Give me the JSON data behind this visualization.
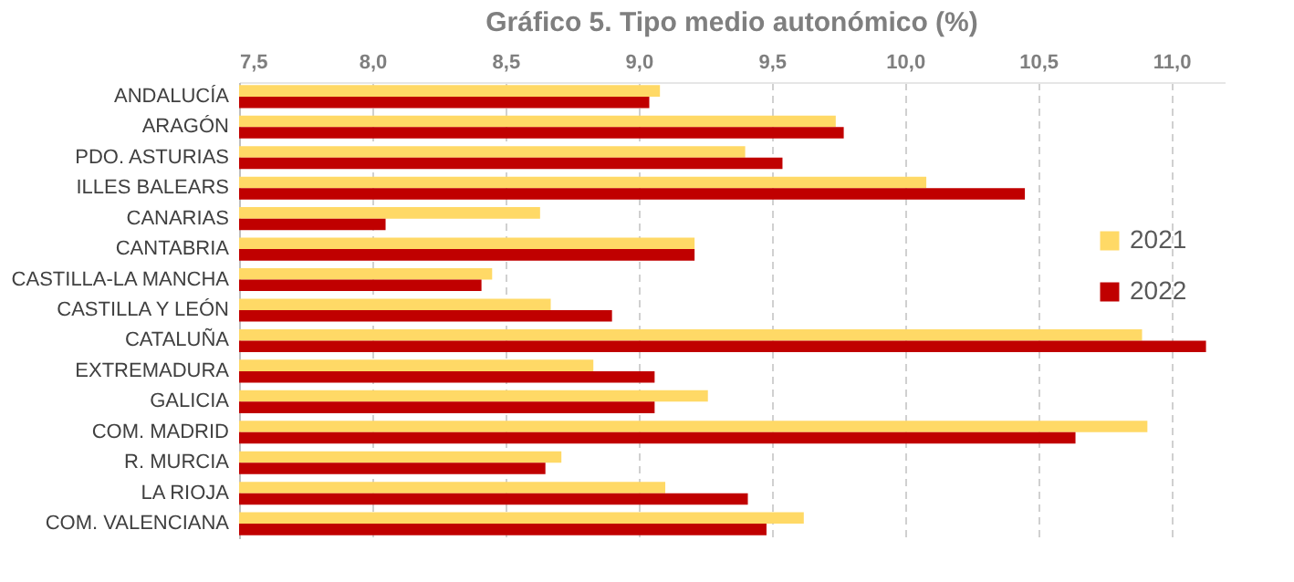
{
  "chart_data": {
    "type": "bar",
    "orientation": "horizontal",
    "title": "Gráfico 5. Tipo medio autonómico (%)",
    "categories": [
      "ANDALUCÍA",
      "ARAGÓN",
      "PDO. ASTURIAS",
      "ILLES BALEARS",
      "CANARIAS",
      "CANTABRIA",
      "CASTILLA-LA MANCHA",
      "CASTILLA Y LEÓN",
      "CATALUÑA",
      "EXTREMADURA",
      "GALICIA",
      "COM. MADRID",
      "R. MURCIA",
      "LA RIOJA",
      "COM. VALENCIANA"
    ],
    "series": [
      {
        "name": "2021",
        "color": "#ffd966",
        "values": [
          9.08,
          9.74,
          9.4,
          10.08,
          8.63,
          9.21,
          8.45,
          8.67,
          10.89,
          8.83,
          9.26,
          10.91,
          8.71,
          9.1,
          9.62
        ]
      },
      {
        "name": "2022",
        "color": "#c00000",
        "values": [
          9.04,
          9.77,
          9.54,
          10.45,
          8.05,
          9.21,
          8.41,
          8.9,
          11.13,
          9.06,
          9.06,
          10.64,
          8.65,
          9.41,
          9.48
        ]
      }
    ],
    "xlim": [
      7.5,
      11.2
    ],
    "xticks": [
      {
        "value": 7.5,
        "label": "7,5"
      },
      {
        "value": 8,
        "label": "8,0"
      },
      {
        "value": 8.5,
        "label": "8,5"
      },
      {
        "value": 9,
        "label": "9,0"
      },
      {
        "value": 9.5,
        "label": "9,5"
      },
      {
        "value": 10,
        "label": "10,0"
      },
      {
        "value": 10.5,
        "label": "10,5"
      },
      {
        "value": 11,
        "label": "11,0"
      }
    ],
    "grid": "x",
    "legend": "right"
  }
}
